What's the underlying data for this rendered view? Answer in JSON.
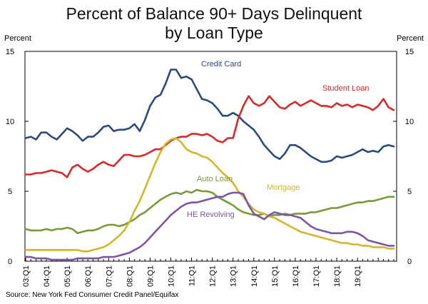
{
  "chart_data": {
    "type": "line",
    "title_lines": [
      "Percent of Balance 90+ Days Delinquent",
      "by Loan Type"
    ],
    "ylabel_left": "Percent",
    "ylabel_right": "Percent",
    "ylim": [
      0,
      15
    ],
    "yticks": [
      0,
      5,
      10,
      15
    ],
    "xticks": [
      "03:Q1",
      "04:Q1",
      "05:Q1",
      "06:Q1",
      "07:Q1",
      "08:Q1",
      "09:Q1",
      "10:Q1",
      "11:Q1",
      "12:Q1",
      "13:Q1",
      "14:Q1",
      "15:Q1",
      "16:Q1",
      "17:Q1",
      "18:Q1",
      "19:Q1"
    ],
    "grid": false,
    "source": "Source: New York Fed Consumer Credit Panel/Equifax",
    "series": [
      {
        "name": "Credit Card",
        "color": "#2c4a7c",
        "values": [
          8.8,
          8.9,
          8.7,
          9.2,
          9.2,
          8.9,
          8.7,
          9.1,
          9.5,
          9.3,
          9.0,
          8.6,
          8.9,
          8.9,
          9.2,
          9.6,
          9.7,
          9.3,
          9.4,
          9.4,
          9.5,
          9.8,
          9.3,
          10.1,
          11.1,
          11.7,
          11.9,
          12.7,
          13.7,
          13.7,
          13.1,
          13.2,
          13.0,
          12.3,
          11.6,
          11.5,
          11.3,
          10.9,
          10.4,
          10.4,
          10.6,
          10.4,
          10.0,
          9.7,
          9.4,
          8.9,
          8.3,
          7.9,
          7.5,
          7.3,
          7.7,
          8.3,
          8.3,
          8.1,
          7.8,
          7.5,
          7.3,
          7.1,
          7.1,
          7.2,
          7.5,
          7.4,
          7.5,
          7.6,
          7.8,
          8.0,
          7.8,
          7.9,
          7.8,
          8.2,
          8.3,
          8.2
        ]
      },
      {
        "name": "Student Loan",
        "color": "#d62a28",
        "values": [
          6.2,
          6.2,
          6.3,
          6.3,
          6.4,
          6.5,
          6.4,
          6.3,
          6.0,
          6.7,
          6.9,
          6.6,
          6.4,
          6.6,
          6.9,
          7.1,
          6.9,
          6.8,
          7.2,
          7.6,
          7.6,
          7.5,
          7.5,
          7.6,
          7.8,
          8.0,
          8.0,
          8.3,
          8.6,
          8.8,
          8.9,
          8.9,
          9.1,
          9.1,
          9.0,
          9.1,
          8.9,
          8.6,
          8.5,
          8.8,
          8.8,
          10.2,
          11.1,
          11.8,
          11.3,
          11.1,
          11.3,
          11.8,
          11.4,
          11.0,
          10.9,
          11.2,
          11.4,
          11.1,
          11.3,
          11.5,
          11.3,
          11.1,
          11.1,
          11.0,
          11.3,
          11.1,
          11.2,
          11.0,
          11.2,
          11.1,
          11.0,
          10.8,
          11.1,
          11.6,
          11.0,
          10.8
        ]
      },
      {
        "name": "Auto Loan",
        "color": "#7a9a3a",
        "values": [
          2.3,
          2.2,
          2.2,
          2.2,
          2.3,
          2.2,
          2.3,
          2.3,
          2.4,
          2.3,
          2.0,
          2.1,
          2.2,
          2.2,
          2.3,
          2.5,
          2.6,
          2.6,
          2.5,
          2.6,
          2.8,
          3.0,
          3.3,
          3.5,
          3.8,
          4.1,
          4.4,
          4.6,
          4.8,
          4.9,
          4.8,
          5.0,
          4.9,
          5.1,
          5.0,
          5.0,
          4.9,
          4.6,
          4.4,
          4.2,
          4.0,
          3.7,
          3.5,
          3.4,
          3.3,
          3.3,
          3.4,
          3.2,
          3.3,
          3.3,
          3.4,
          3.3,
          3.4,
          3.4,
          3.4,
          3.5,
          3.5,
          3.6,
          3.7,
          3.8,
          3.8,
          3.9,
          4.0,
          4.1,
          4.2,
          4.2,
          4.3,
          4.3,
          4.4,
          4.5,
          4.6,
          4.6
        ]
      },
      {
        "name": "Mortgage",
        "color": "#d4b62e",
        "values": [
          0.8,
          0.8,
          0.8,
          0.8,
          0.8,
          0.8,
          0.8,
          0.8,
          0.8,
          0.8,
          0.8,
          0.7,
          0.7,
          0.8,
          0.9,
          1.0,
          1.2,
          1.5,
          1.8,
          2.2,
          2.8,
          3.6,
          4.3,
          5.2,
          6.1,
          7.0,
          7.8,
          8.4,
          8.7,
          8.8,
          8.5,
          8.0,
          7.8,
          7.7,
          7.5,
          7.4,
          7.1,
          6.7,
          6.3,
          6.0,
          5.6,
          5.0,
          4.6,
          4.1,
          3.7,
          3.5,
          3.4,
          3.2,
          3.1,
          2.9,
          2.7,
          2.5,
          2.3,
          2.1,
          2.0,
          1.9,
          1.8,
          1.7,
          1.6,
          1.5,
          1.4,
          1.3,
          1.3,
          1.2,
          1.2,
          1.1,
          1.1,
          1.0,
          1.0,
          1.0,
          0.9,
          0.9
        ]
      },
      {
        "name": "HE Revolving",
        "color": "#7a56a6",
        "values": [
          0.3,
          0.3,
          0.2,
          0.2,
          0.2,
          0.1,
          0.1,
          0.1,
          0.1,
          0.1,
          0.2,
          0.2,
          0.2,
          0.2,
          0.2,
          0.3,
          0.3,
          0.3,
          0.4,
          0.5,
          0.6,
          0.8,
          1.0,
          1.3,
          1.7,
          2.1,
          2.5,
          2.9,
          3.3,
          3.6,
          3.9,
          4.1,
          4.2,
          4.2,
          4.3,
          4.4,
          4.5,
          4.6,
          4.6,
          4.8,
          4.9,
          4.9,
          4.8,
          4.0,
          3.4,
          3.2,
          3.0,
          3.3,
          3.5,
          3.4,
          3.3,
          3.3,
          3.2,
          3.1,
          2.8,
          2.5,
          2.3,
          2.2,
          2.1,
          2.0,
          2.0,
          2.0,
          2.1,
          2.1,
          2.0,
          1.8,
          1.5,
          1.4,
          1.3,
          1.2,
          1.1,
          1.1
        ]
      }
    ],
    "series_labels": [
      "Credit Card",
      "Student Loan",
      "Auto Loan",
      "Mortgage",
      "HE Revolving"
    ]
  }
}
